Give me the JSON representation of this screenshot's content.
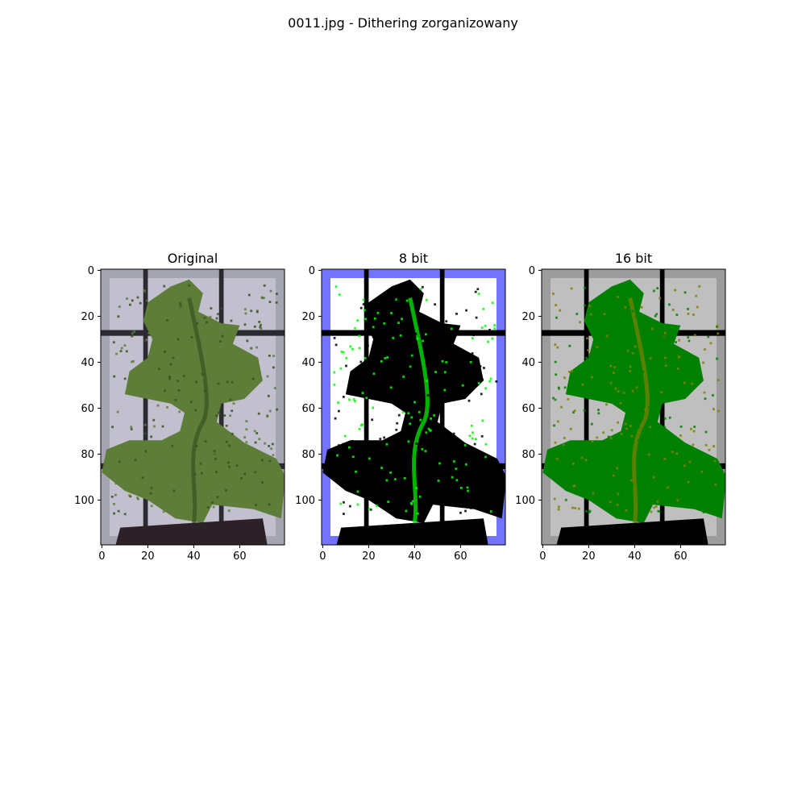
{
  "figure": {
    "suptitle": "0011.jpg - Dithering zorganizowany"
  },
  "chart_data": [
    {
      "type": "image",
      "title": "Original",
      "xlim": [
        -0.5,
        79.5
      ],
      "ylim": [
        119.5,
        -0.5
      ],
      "xticks": [
        0,
        20,
        40,
        60
      ],
      "yticks": [
        0,
        20,
        40,
        60,
        80,
        100
      ],
      "palette": {
        "bg": "#c2c0ce",
        "bg_edge": "#8e8e9a",
        "grid": "#2a2a30",
        "foliage": "#5d7d39",
        "foliage_dark": "#37521f",
        "pot": "#2c2126"
      }
    },
    {
      "type": "image",
      "title": "8 bit",
      "xlim": [
        -0.5,
        79.5
      ],
      "ylim": [
        119.5,
        -0.5
      ],
      "xticks": [
        0,
        20,
        40,
        60
      ],
      "yticks": [
        0,
        20,
        40,
        60,
        80,
        100
      ],
      "palette": {
        "bg": "#ffffff",
        "bg_edge": "#0000ff",
        "grid": "#000000",
        "foliage": "#000000",
        "foliage_dark": "#00ff00",
        "pot": "#000000"
      }
    },
    {
      "type": "image",
      "title": "16 bit",
      "xlim": [
        -0.5,
        79.5
      ],
      "ylim": [
        119.5,
        -0.5
      ],
      "xticks": [
        0,
        20,
        40,
        60
      ],
      "yticks": [
        0,
        20,
        40,
        60,
        80,
        100
      ],
      "palette": {
        "bg": "#bfbfbf",
        "bg_edge": "#808080",
        "grid": "#000000",
        "foliage": "#008000",
        "foliage_dark": "#808000",
        "pot": "#000000"
      }
    }
  ]
}
